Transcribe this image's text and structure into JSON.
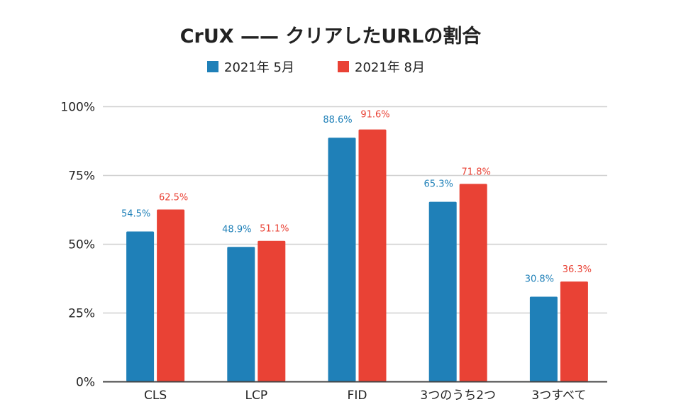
{
  "chart_data": {
    "type": "bar",
    "title": "CrUX —— クリアしたURLの割合",
    "categories": [
      "CLS",
      "LCP",
      "FID",
      "3つのうち2つ",
      "3つすべて"
    ],
    "series": [
      {
        "name": "2021年 5月",
        "color": "#1f80b8",
        "values": [
          54.5,
          48.9,
          88.6,
          65.3,
          30.8
        ],
        "labels": [
          "54.5%",
          "48.9%",
          "88.6%",
          "65.3%",
          "30.8%"
        ]
      },
      {
        "name": "2021年 8月",
        "color": "#e94235",
        "values": [
          62.5,
          51.1,
          91.6,
          71.8,
          36.3
        ],
        "labels": [
          "62.5%",
          "51.1%",
          "91.6%",
          "71.8%",
          "36.3%"
        ]
      }
    ],
    "xlabel": "",
    "ylabel": "",
    "ylim": [
      0,
      100
    ],
    "yticks": [
      0,
      25,
      50,
      75,
      100
    ],
    "ytick_labels": [
      "0%",
      "25%",
      "50%",
      "75%",
      "100%"
    ],
    "grid": true,
    "legend_position": "top-center"
  }
}
